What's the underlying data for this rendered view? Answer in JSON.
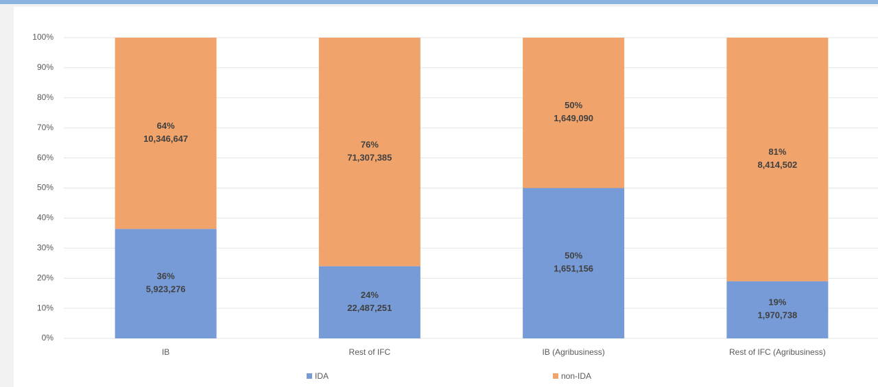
{
  "chart_data": {
    "type": "stacked_bar_100",
    "categories": [
      "IB",
      "Rest of IFC",
      "IB (Agribusiness)",
      "Rest of IFC (Agribusiness)"
    ],
    "series": [
      {
        "name": "IDA",
        "color": "#779bd6",
        "values": [
          36.4,
          24.0,
          50.0,
          19.0
        ],
        "value_labels": [
          "36%",
          "24%",
          "50%",
          "19%"
        ],
        "amount_labels": [
          "5,923,276",
          "22,487,251",
          "1,651,156",
          "1,970,738"
        ]
      },
      {
        "name": "non-IDA",
        "color": "#f0a46c",
        "values": [
          63.6,
          76.0,
          50.0,
          81.0
        ],
        "value_labels": [
          "64%",
          "76%",
          "50%",
          "81%"
        ],
        "amount_labels": [
          "10,346,647",
          "71,307,385",
          "1,649,090",
          "8,414,502"
        ]
      }
    ],
    "ylim": [
      0,
      100
    ],
    "yticks": [
      {
        "value": 0,
        "label": "0%"
      },
      {
        "value": 10,
        "label": "10%"
      },
      {
        "value": 20,
        "label": "20%"
      },
      {
        "value": 30,
        "label": "30%"
      },
      {
        "value": 40,
        "label": "40%"
      },
      {
        "value": 50,
        "label": "50%"
      },
      {
        "value": 60,
        "label": "60%"
      },
      {
        "value": 70,
        "label": "70%"
      },
      {
        "value": 80,
        "label": "80%"
      },
      {
        "value": 90,
        "label": "90%"
      },
      {
        "value": 100,
        "label": "100%"
      }
    ],
    "grid": true
  }
}
